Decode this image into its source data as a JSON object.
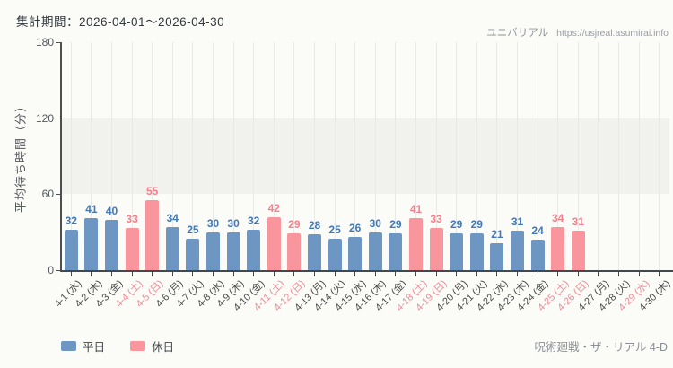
{
  "header": {
    "period_label": "集計期間：2026-04-01～2026-04-30",
    "brand": "ユニバリアル",
    "url": "https://usjreal.asumirai.info"
  },
  "footer": {
    "attraction": "呪術廻戦・ザ・リアル 4-D"
  },
  "chart_data": {
    "type": "bar",
    "title": "集計期間：2026-04-01～2026-04-30",
    "xlabel": "",
    "ylabel": "平均待ち時間（分）",
    "ylim": [
      0,
      180
    ],
    "yticks": [
      0,
      60,
      120,
      180
    ],
    "grid": "vertical",
    "legend_position": "bottom-left",
    "categories": [
      "4-1 (水)",
      "4-2 (木)",
      "4-3 (金)",
      "4-4 (土)",
      "4-5 (日)",
      "4-6 (月)",
      "4-7 (火)",
      "4-8 (水)",
      "4-9 (木)",
      "4-10 (金)",
      "4-11 (土)",
      "4-12 (日)",
      "4-13 (月)",
      "4-14 (火)",
      "4-15 (水)",
      "4-16 (木)",
      "4-17 (金)",
      "4-18 (土)",
      "4-19 (日)",
      "4-20 (月)",
      "4-21 (火)",
      "4-22 (水)",
      "4-23 (木)",
      "4-24 (金)",
      "4-25 (土)",
      "4-26 (日)",
      "4-27 (月)",
      "4-28 (火)",
      "4-29 (水)",
      "4-30 (木)"
    ],
    "values": [
      32,
      41,
      40,
      33,
      55,
      34,
      25,
      30,
      30,
      32,
      42,
      29,
      28,
      25,
      26,
      30,
      29,
      41,
      33,
      29,
      29,
      21,
      31,
      24,
      34,
      31,
      null,
      null,
      null,
      null
    ],
    "day_types": [
      "weekday",
      "weekday",
      "weekday",
      "holiday",
      "holiday",
      "weekday",
      "weekday",
      "weekday",
      "weekday",
      "weekday",
      "holiday",
      "holiday",
      "weekday",
      "weekday",
      "weekday",
      "weekday",
      "weekday",
      "holiday",
      "holiday",
      "weekday",
      "weekday",
      "weekday",
      "weekday",
      "weekday",
      "holiday",
      "holiday",
      "weekday",
      "weekday",
      "holiday",
      "weekday"
    ],
    "bar_colors": {
      "weekday": "#6e96c3",
      "holiday": "#f9959c"
    },
    "value_label_colors": {
      "weekday": "#4178b8",
      "holiday": "#f5808d"
    },
    "xlabel_colors": {
      "weekday": "#4c4c4c",
      "holiday": "#f28b95"
    },
    "legend": [
      {
        "label": "平日",
        "type": "weekday",
        "color": "#6e96c3"
      },
      {
        "label": "休日",
        "type": "holiday",
        "color": "#f9959c"
      }
    ]
  }
}
